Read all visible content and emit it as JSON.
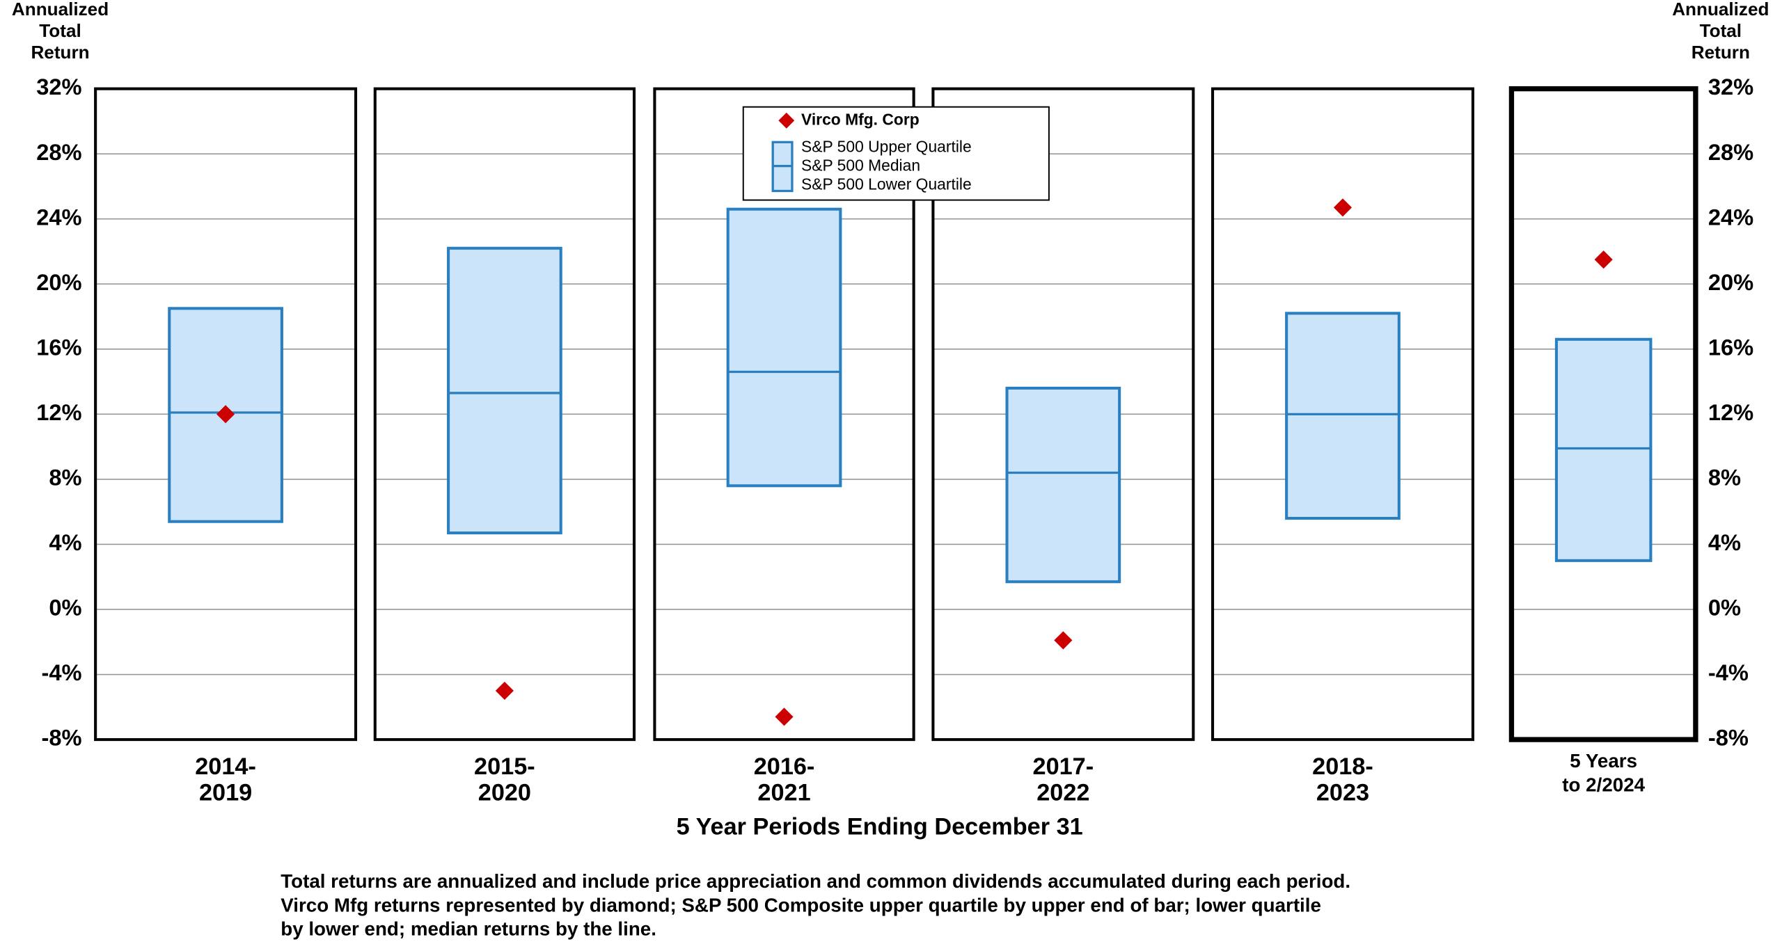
{
  "chart_data": {
    "type": "quartile-box",
    "y_label": [
      "Annualized",
      "Total",
      "Return"
    ],
    "y2_label": [
      "Annualized",
      "Total",
      "Return"
    ],
    "x_label": "5 Year Periods Ending December 31",
    "categories": [
      [
        "2014-",
        "2019"
      ],
      [
        "2015-",
        "2020"
      ],
      [
        "2016-",
        "2021"
      ],
      [
        "2017-",
        "2022"
      ],
      [
        "2018-",
        "2023"
      ],
      [
        "5 Years",
        "to  2/2024"
      ]
    ],
    "series": [
      {
        "name": "Virco Mfg. Corp",
        "color": "#cc0000",
        "values": [
          12.0,
          -5.0,
          -6.6,
          -1.9,
          24.7,
          21.5
        ]
      },
      {
        "name": "S&P 500 Upper Quartile",
        "color": "#2a7fc0",
        "values": [
          18.5,
          22.2,
          24.6,
          13.6,
          18.2,
          16.6
        ]
      },
      {
        "name": "S&P 500 Median",
        "color": "#2a7fc0",
        "values": [
          12.1,
          13.3,
          14.6,
          8.4,
          12.0,
          9.9
        ]
      },
      {
        "name": "S&P 500 Lower Quartile",
        "color": "#2a7fc0",
        "values": [
          5.4,
          4.7,
          7.6,
          1.7,
          5.6,
          3.0
        ]
      }
    ],
    "box_fill": "#cce4f9",
    "ylim": [
      -8,
      32
    ],
    "yticks": [
      {
        "value": -8,
        "label": "-8%"
      },
      {
        "value": -4,
        "label": "-4%"
      },
      {
        "value": 0,
        "label": "0%"
      },
      {
        "value": 4,
        "label": "4%"
      },
      {
        "value": 8,
        "label": "8%"
      },
      {
        "value": 12,
        "label": "12%"
      },
      {
        "value": 16,
        "label": "16%"
      },
      {
        "value": 20,
        "label": "20%"
      },
      {
        "value": 24,
        "label": "24%"
      },
      {
        "value": 28,
        "label": "28%"
      },
      {
        "value": 32,
        "label": "32%"
      }
    ],
    "y2lim": [
      -8,
      32
    ],
    "y2ticks": [
      {
        "value": -8,
        "label": "-8%"
      },
      {
        "value": -4,
        "label": "-4%"
      },
      {
        "value": 0,
        "label": "0%"
      },
      {
        "value": 4,
        "label": "4%"
      },
      {
        "value": 8,
        "label": "8%"
      },
      {
        "value": 12,
        "label": "12%"
      },
      {
        "value": 16,
        "label": "16%"
      },
      {
        "value": 20,
        "label": "20%"
      },
      {
        "value": 24,
        "label": "24%"
      },
      {
        "value": 28,
        "label": "28%"
      },
      {
        "value": 32,
        "label": "32%"
      }
    ],
    "grid": true,
    "footnote": [
      "Total returns are annualized and include price appreciation and common dividends accumulated during each period.",
      "Virco Mfg returns represented by diamond; S&P 500 Composite upper quartile by upper end of bar; lower quartile",
      "by lower end; median returns by the line."
    ]
  }
}
